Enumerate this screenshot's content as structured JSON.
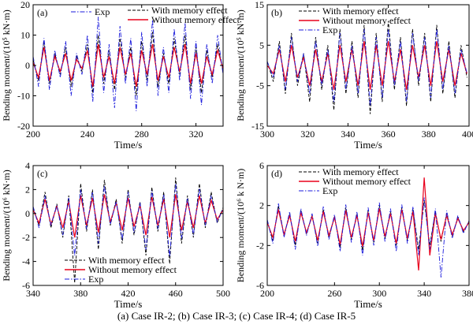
{
  "caption": "(a) Case IR-2; (b) Case IR-3; (c) Case IR-4; (d) Case IR-5",
  "colors": {
    "with": "#000000",
    "without": "#e8001c",
    "exp": "#1a1adc"
  },
  "chart_data": [
    {
      "type": "line",
      "panel_label": "(a)",
      "xlabel": "Time/s",
      "ylabel": "Bending moment/(10⁵ kN·m)",
      "xlim": [
        200,
        340
      ],
      "ylim": [
        -20,
        20
      ],
      "xticks": [
        200,
        240,
        280,
        320
      ],
      "yticks": [
        -20,
        -10,
        0,
        10,
        20
      ],
      "legend": {
        "placement": "top",
        "order": [
          "exp",
          "with",
          "without"
        ]
      },
      "series": [
        {
          "key": "with",
          "name": "With memory effect",
          "style": "dashed",
          "x": [
            200,
            204,
            208,
            212,
            216,
            220,
            224,
            228,
            232,
            236,
            240,
            244,
            248,
            252,
            256,
            260,
            264,
            268,
            272,
            276,
            280,
            284,
            288,
            292,
            296,
            300,
            304,
            308,
            312,
            316,
            320,
            324,
            328,
            332,
            336,
            340
          ],
          "y": [
            2,
            -5,
            8,
            -6,
            4,
            -3,
            6,
            -7,
            3,
            -2,
            7,
            -9,
            10,
            -6,
            5,
            -8,
            9,
            -4,
            6,
            -10,
            8,
            -5,
            11,
            -7,
            4,
            -6,
            9,
            -3,
            10,
            -8,
            6,
            -9,
            5,
            -4,
            7,
            -2
          ]
        },
        {
          "key": "without",
          "name": "Without memory effect",
          "style": "solid",
          "x": [
            200,
            204,
            208,
            212,
            216,
            220,
            224,
            228,
            232,
            236,
            240,
            244,
            248,
            252,
            256,
            260,
            264,
            268,
            272,
            276,
            280,
            284,
            288,
            292,
            296,
            300,
            304,
            308,
            312,
            316,
            320,
            324,
            328,
            332,
            336,
            340
          ],
          "y": [
            1,
            -4,
            6,
            -5,
            3,
            -2,
            4,
            -5,
            2,
            -1,
            5,
            -7,
            7,
            -4,
            3,
            -6,
            6,
            -3,
            4,
            -7,
            5,
            -3,
            7,
            -5,
            3,
            -4,
            6,
            -2,
            7,
            -6,
            4,
            -6,
            3,
            -3,
            5,
            -1
          ]
        },
        {
          "key": "exp",
          "name": "Exp",
          "style": "dashdot",
          "x": [
            200,
            204,
            208,
            212,
            216,
            220,
            224,
            228,
            232,
            236,
            240,
            244,
            248,
            252,
            256,
            260,
            264,
            268,
            272,
            276,
            280,
            284,
            288,
            292,
            296,
            300,
            304,
            308,
            312,
            316,
            320,
            324,
            328,
            332,
            336,
            340
          ],
          "y": [
            3,
            -7,
            9,
            -8,
            5,
            -4,
            8,
            -10,
            4,
            -3,
            10,
            -12,
            16,
            -9,
            7,
            -14,
            13,
            -6,
            9,
            -15,
            11,
            -7,
            15,
            -10,
            6,
            -9,
            12,
            -5,
            14,
            -11,
            8,
            -13,
            7,
            -6,
            10,
            -3
          ]
        }
      ]
    },
    {
      "type": "line",
      "panel_label": "(b)",
      "xlabel": "Time/s",
      "ylabel": "Bending moment/(10⁵ kN·m)",
      "xlim": [
        300,
        400
      ],
      "ylim": [
        -15,
        15
      ],
      "xticks": [
        300,
        320,
        340,
        360,
        380,
        400
      ],
      "yticks": [
        -15,
        -5,
        5,
        15
      ],
      "legend": {
        "placement": "top",
        "order": [
          "with",
          "without",
          "exp"
        ]
      },
      "series": [
        {
          "key": "with",
          "name": "With memory effect",
          "style": "dashed",
          "x": [
            300,
            303,
            306,
            309,
            312,
            315,
            318,
            321,
            324,
            327,
            330,
            333,
            336,
            339,
            342,
            345,
            348,
            351,
            354,
            357,
            360,
            363,
            366,
            369,
            372,
            375,
            378,
            381,
            384,
            387,
            390,
            393,
            396,
            399
          ],
          "y": [
            1,
            -4,
            6,
            -7,
            8,
            -5,
            3,
            -9,
            7,
            -6,
            5,
            -11,
            9,
            -7,
            6,
            -8,
            10,
            -12,
            8,
            -9,
            11,
            -6,
            7,
            -10,
            9,
            -5,
            8,
            -9,
            10,
            -7,
            6,
            -8,
            5,
            -3
          ]
        },
        {
          "key": "without",
          "name": "Without memory effect",
          "style": "solid",
          "x": [
            300,
            303,
            306,
            309,
            312,
            315,
            318,
            321,
            324,
            327,
            330,
            333,
            336,
            339,
            342,
            345,
            348,
            351,
            354,
            357,
            360,
            363,
            366,
            369,
            372,
            375,
            378,
            381,
            384,
            387,
            390,
            393,
            396,
            399
          ],
          "y": [
            0,
            -2,
            4,
            -4,
            5,
            -3,
            2,
            -5,
            4,
            -4,
            3,
            -6,
            5,
            -4,
            4,
            -5,
            6,
            -6,
            5,
            -5,
            6,
            -4,
            4,
            -6,
            5,
            -3,
            5,
            -5,
            6,
            -4,
            4,
            -5,
            3,
            -2
          ]
        },
        {
          "key": "exp",
          "name": "Exp",
          "style": "dashdot",
          "x": [
            300,
            303,
            306,
            309,
            312,
            315,
            318,
            321,
            324,
            327,
            330,
            333,
            336,
            339,
            342,
            345,
            348,
            351,
            354,
            357,
            360,
            363,
            366,
            369,
            372,
            375,
            378,
            381,
            384,
            387,
            390,
            393,
            396,
            399
          ],
          "y": [
            1,
            -3,
            5,
            -6,
            7,
            -4,
            3,
            -7,
            6,
            -5,
            4,
            -9,
            8,
            -6,
            5,
            -7,
            9,
            -10,
            7,
            -8,
            9,
            -5,
            6,
            -9,
            8,
            -4,
            7,
            -8,
            9,
            -6,
            5,
            -7,
            4,
            -2
          ]
        }
      ]
    },
    {
      "type": "line",
      "panel_label": "(c)",
      "xlabel": "Time/s",
      "ylabel": "Bending moment/(10⁶ kN·m)",
      "xlim": [
        340,
        500
      ],
      "ylim": [
        -6,
        4
      ],
      "xticks": [
        340,
        380,
        420,
        460,
        500
      ],
      "yticks": [
        -6,
        -4,
        -2,
        0,
        2,
        4
      ],
      "legend": {
        "placement": "bottom",
        "order": [
          "with",
          "without",
          "exp"
        ]
      },
      "series": [
        {
          "key": "with",
          "name": "With memory effect",
          "style": "dashed",
          "x": [
            340,
            345,
            350,
            355,
            360,
            365,
            370,
            375,
            380,
            385,
            390,
            395,
            400,
            405,
            410,
            415,
            420,
            425,
            430,
            435,
            440,
            445,
            450,
            455,
            460,
            465,
            470,
            475,
            480,
            485,
            490,
            495,
            500
          ],
          "y": [
            0.5,
            -1,
            1.8,
            -1.2,
            0.8,
            -2,
            1.5,
            -5.8,
            2.5,
            -1.5,
            2,
            -3,
            2.8,
            -1,
            1.2,
            -2.5,
            2,
            -1.8,
            1,
            -3.5,
            2.2,
            -1.5,
            1.8,
            -4.2,
            3,
            -2.5,
            1.5,
            -2,
            2.5,
            -1.2,
            1.8,
            -0.8,
            0.5
          ]
        },
        {
          "key": "without",
          "name": "Without memory effect",
          "style": "solid",
          "x": [
            340,
            345,
            350,
            355,
            360,
            365,
            370,
            375,
            380,
            385,
            390,
            395,
            400,
            405,
            410,
            415,
            420,
            425,
            430,
            435,
            440,
            445,
            450,
            455,
            460,
            465,
            470,
            475,
            480,
            485,
            490,
            495,
            500
          ],
          "y": [
            0.3,
            -0.8,
            1.2,
            -0.9,
            0.6,
            -1.2,
            1,
            -2,
            1.5,
            -1,
            1.3,
            -1.6,
            1.6,
            -0.7,
            0.9,
            -1.4,
            1.3,
            -1.1,
            0.7,
            -1.8,
            1.4,
            -1,
            1.2,
            -2,
            1.6,
            -1.4,
            1,
            -1.2,
            1.5,
            -0.8,
            1.1,
            -0.5,
            0.3
          ]
        },
        {
          "key": "exp",
          "name": "Exp",
          "style": "dashdot",
          "x": [
            340,
            345,
            350,
            355,
            360,
            365,
            370,
            375,
            380,
            385,
            390,
            395,
            400,
            405,
            410,
            415,
            420,
            425,
            430,
            435,
            440,
            445,
            450,
            455,
            460,
            465,
            470,
            475,
            480,
            485,
            490,
            495,
            500
          ],
          "y": [
            0.6,
            -1.2,
            1.5,
            -1,
            0.7,
            -1.8,
            1.3,
            -3.5,
            2,
            -1.3,
            1.8,
            -2.5,
            2.3,
            -0.9,
            1,
            -2.2,
            1.8,
            -1.6,
            0.9,
            -3,
            1.9,
            -1.3,
            1.6,
            -3.6,
            2.5,
            -2.1,
            1.3,
            -1.8,
            2.1,
            -1,
            1.5,
            -0.7,
            0.4
          ]
        }
      ]
    },
    {
      "type": "line",
      "panel_label": "(d)",
      "xlabel": "Time/s",
      "ylabel": "Bending moment/(10⁶ k N·m)",
      "xlim": [
        200,
        380
      ],
      "ylim": [
        -6,
        6
      ],
      "xticks": [
        200,
        260,
        300,
        340,
        380
      ],
      "yticks": [
        -6,
        -2,
        2,
        6
      ],
      "legend": {
        "placement": "top",
        "order": [
          "with",
          "without",
          "exp"
        ]
      },
      "series": [
        {
          "key": "with",
          "name": "With memory effect",
          "style": "dashed",
          "x": [
            200,
            205,
            210,
            215,
            220,
            225,
            230,
            235,
            240,
            245,
            250,
            255,
            260,
            265,
            270,
            275,
            280,
            285,
            290,
            295,
            300,
            305,
            310,
            315,
            320,
            325,
            330,
            335,
            340,
            345,
            350,
            355,
            360,
            365,
            370,
            375,
            380
          ],
          "y": [
            0.5,
            -1.5,
            2,
            -1,
            1.2,
            -2,
            1.5,
            -0.8,
            1,
            -1.8,
            1.6,
            -1.2,
            0.9,
            -2.2,
            1.8,
            -1.4,
            1.2,
            -2.5,
            1.5,
            -1.7,
            2,
            -1.3,
            1.4,
            -2,
            1.8,
            -1.5,
            1.6,
            -2.4,
            2.5,
            -2,
            1.4,
            -1.6,
            1.2,
            -1,
            0.8,
            -0.6,
            0.4
          ]
        },
        {
          "key": "without",
          "name": "Without memory effect",
          "style": "solid",
          "x": [
            200,
            205,
            210,
            215,
            220,
            225,
            230,
            235,
            240,
            245,
            250,
            255,
            260,
            265,
            270,
            275,
            280,
            285,
            290,
            295,
            300,
            305,
            310,
            315,
            320,
            325,
            330,
            335,
            340,
            345,
            350,
            355,
            360,
            365,
            370,
            375,
            380
          ],
          "y": [
            0.3,
            -1.2,
            1.6,
            -0.9,
            1,
            -1.6,
            1.3,
            -0.7,
            0.9,
            -1.5,
            1.4,
            -1,
            0.8,
            -1.9,
            1.5,
            -1.2,
            1,
            -2.1,
            1.3,
            -1.5,
            1.7,
            -1.1,
            1.2,
            -1.8,
            1.6,
            -1.3,
            1.4,
            -4.5,
            4.8,
            -3,
            1.2,
            -1.4,
            1,
            -0.9,
            0.7,
            -0.5,
            0.3
          ]
        },
        {
          "key": "exp",
          "name": "Exp",
          "style": "dashdot",
          "x": [
            200,
            205,
            210,
            215,
            220,
            225,
            230,
            235,
            240,
            245,
            250,
            255,
            260,
            265,
            270,
            275,
            280,
            285,
            290,
            295,
            300,
            305,
            310,
            315,
            320,
            325,
            330,
            335,
            340,
            345,
            350,
            355,
            360,
            365,
            370,
            375,
            380
          ],
          "y": [
            0.6,
            -1.8,
            2.2,
            -1.2,
            1.4,
            -2.4,
            1.7,
            -1,
            1.2,
            -2.1,
            1.9,
            -1.4,
            1.1,
            -2.6,
            2.1,
            -1.7,
            1.4,
            -3,
            1.8,
            -2,
            2.3,
            -1.6,
            1.7,
            -2.6,
            2.1,
            -1.8,
            1.9,
            -3,
            2.8,
            -2.4,
            1.7,
            -5.2,
            1.5,
            -1.3,
            1,
            -0.8,
            0.5
          ]
        }
      ]
    }
  ]
}
